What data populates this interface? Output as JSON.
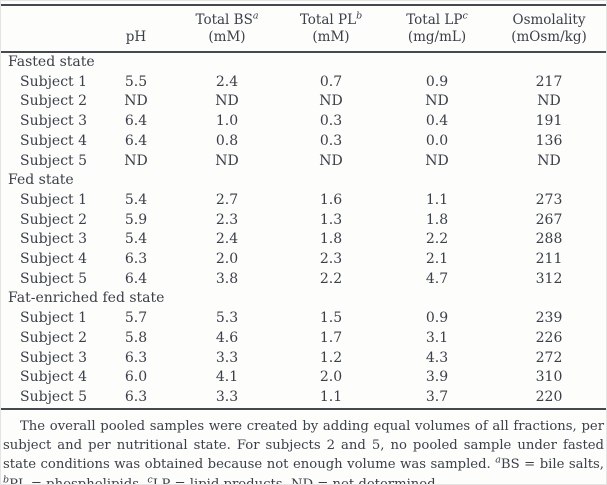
{
  "table": {
    "columns": [
      {
        "top": "",
        "sup": "",
        "bottom": "pH"
      },
      {
        "top": "Total BS",
        "sup": "a",
        "bottom": "(mM)"
      },
      {
        "top": "Total PL",
        "sup": "b",
        "bottom": "(mM)"
      },
      {
        "top": "Total LP",
        "sup": "c",
        "bottom": "(mg/mL)"
      },
      {
        "top": "Osmolality",
        "sup": "",
        "bottom": "(mOsm/kg)"
      }
    ],
    "groups": [
      {
        "label": "Fasted state",
        "rows": [
          {
            "label": "Subject 1",
            "values": [
              "5.5",
              "2.4",
              "0.7",
              "0.9",
              "217"
            ]
          },
          {
            "label": "Subject 2",
            "values": [
              "ND",
              "ND",
              "ND",
              "ND",
              "ND"
            ]
          },
          {
            "label": "Subject 3",
            "values": [
              "6.4",
              "1.0",
              "0.3",
              "0.4",
              "191"
            ]
          },
          {
            "label": "Subject 4",
            "values": [
              "6.4",
              "0.8",
              "0.3",
              "0.0",
              "136"
            ]
          },
          {
            "label": "Subject 5",
            "values": [
              "ND",
              "ND",
              "ND",
              "ND",
              "ND"
            ]
          }
        ]
      },
      {
        "label": "Fed state",
        "rows": [
          {
            "label": "Subject 1",
            "values": [
              "5.4",
              "2.7",
              "1.6",
              "1.1",
              "273"
            ]
          },
          {
            "label": "Subject 2",
            "values": [
              "5.9",
              "2.3",
              "1.3",
              "1.8",
              "267"
            ]
          },
          {
            "label": "Subject 3",
            "values": [
              "5.4",
              "2.4",
              "1.8",
              "2.2",
              "288"
            ]
          },
          {
            "label": "Subject 4",
            "values": [
              "6.3",
              "2.0",
              "2.3",
              "2.1",
              "211"
            ]
          },
          {
            "label": "Subject 5",
            "values": [
              "6.4",
              "3.8",
              "2.2",
              "4.7",
              "312"
            ]
          }
        ]
      },
      {
        "label": "Fat-enriched fed state",
        "rows": [
          {
            "label": "Subject 1",
            "values": [
              "5.7",
              "5.3",
              "1.5",
              "0.9",
              "239"
            ]
          },
          {
            "label": "Subject 2",
            "values": [
              "5.8",
              "4.6",
              "1.7",
              "3.1",
              "226"
            ]
          },
          {
            "label": "Subject 3",
            "values": [
              "6.3",
              "3.3",
              "1.2",
              "4.3",
              "272"
            ]
          },
          {
            "label": "Subject 4",
            "values": [
              "6.0",
              "4.1",
              "2.0",
              "3.9",
              "310"
            ]
          },
          {
            "label": "Subject 5",
            "values": [
              "6.3",
              "3.3",
              "1.1",
              "3.7",
              "220"
            ]
          }
        ]
      }
    ]
  },
  "footnote": {
    "segments": [
      {
        "sup": false,
        "text": "The overall pooled samples were created by adding equal volumes of all fractions, per subject and per nutritional state. For subjects 2 and 5, no pooled sample under fasted state conditions was obtained because not enough volume was sampled. "
      },
      {
        "sup": true,
        "text": "a"
      },
      {
        "sup": false,
        "text": "BS = bile salts, "
      },
      {
        "sup": true,
        "text": "b"
      },
      {
        "sup": false,
        "text": "PL = phospholipids, "
      },
      {
        "sup": true,
        "text": "c"
      },
      {
        "sup": false,
        "text": "LP = lipid products, ND = not determined."
      }
    ]
  }
}
